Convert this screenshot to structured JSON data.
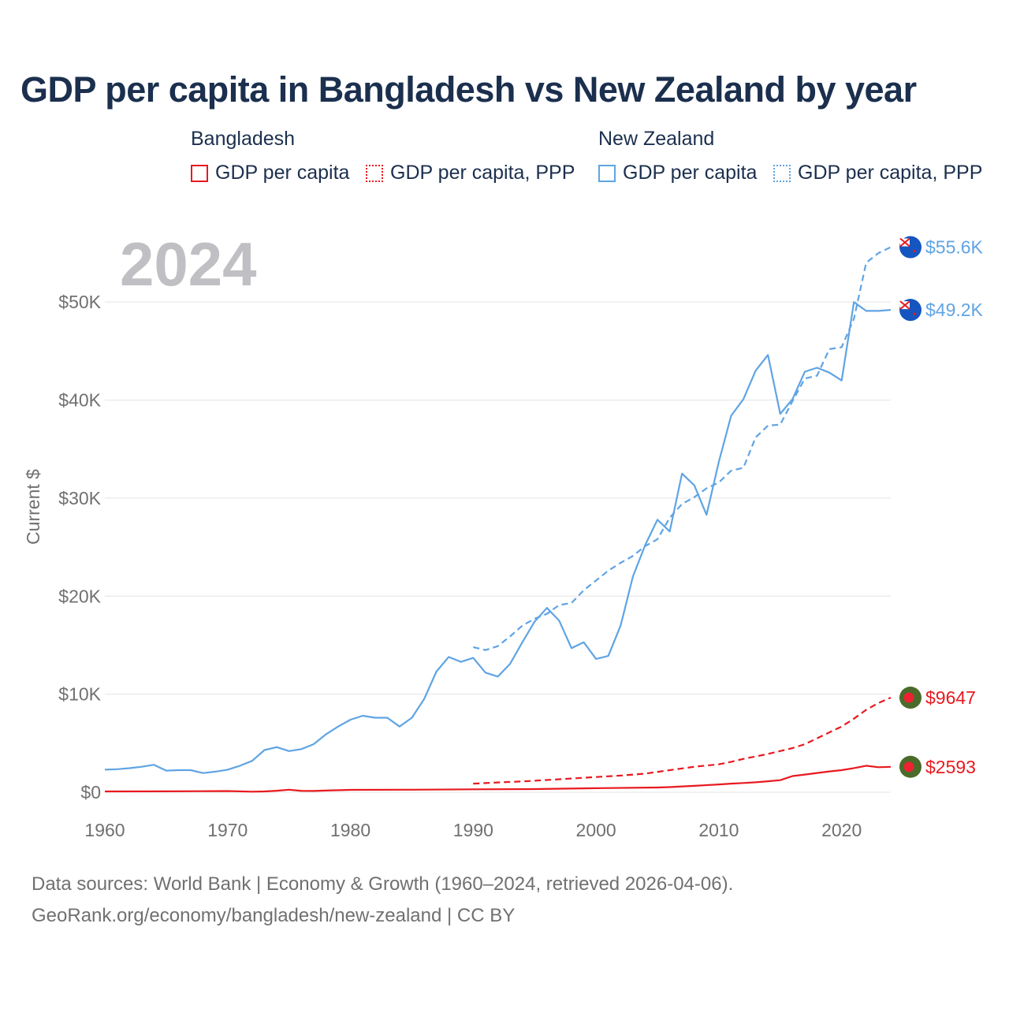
{
  "title": "GDP per capita in Bangladesh vs New Zealand by year",
  "legend": {
    "bangladesh": {
      "group": "Bangladesh",
      "gdp_label": "GDP per capita",
      "ppp_label": "GDP per capita, PPP"
    },
    "new_zealand": {
      "group": "New Zealand",
      "gdp_label": "GDP per capita",
      "ppp_label": "GDP per capita, PPP"
    }
  },
  "colors": {
    "bangladesh": "#e8191f",
    "new_zealand": "#5fa4e4",
    "grid": "#e4e4e4",
    "axis_text": "#707070"
  },
  "footer": {
    "line1": "Data sources: World Bank | Economy & Growth (1960–2024, retrieved 2026-04-06).",
    "line2": "GeoRank.org/economy/bangladesh/new-zealand | CC BY"
  },
  "chart_data": {
    "type": "line",
    "title": "GDP per capita in Bangladesh vs New Zealand by year",
    "ylabel": "Current $",
    "xlabel": "",
    "year_label": "2024",
    "xlim": [
      1960,
      2024
    ],
    "ylim": [
      0,
      55000
    ],
    "x_ticks": [
      "1960",
      "1970",
      "1980",
      "1990",
      "2000",
      "2010",
      "2020"
    ],
    "y_ticks": [
      {
        "value": 0,
        "label": "$0"
      },
      {
        "value": 10000,
        "label": "$10K"
      },
      {
        "value": 20000,
        "label": "$20K"
      },
      {
        "value": 30000,
        "label": "$30K"
      },
      {
        "value": 40000,
        "label": "$40K"
      },
      {
        "value": 50000,
        "label": "$50K"
      }
    ],
    "series": [
      {
        "name": "New Zealand GDP per capita",
        "country": "new_zealand",
        "style": "solid",
        "end_label": "$49.2K",
        "end_value": 49200,
        "x": [
          1960,
          1961,
          1962,
          1963,
          1964,
          1965,
          1966,
          1967,
          1968,
          1969,
          1970,
          1971,
          1972,
          1973,
          1974,
          1975,
          1976,
          1977,
          1978,
          1979,
          1980,
          1981,
          1982,
          1983,
          1984,
          1985,
          1986,
          1987,
          1988,
          1989,
          1990,
          1991,
          1992,
          1993,
          1994,
          1995,
          1996,
          1997,
          1998,
          1999,
          2000,
          2001,
          2002,
          2003,
          2004,
          2005,
          2006,
          2007,
          2008,
          2009,
          2010,
          2011,
          2012,
          2013,
          2014,
          2015,
          2016,
          2017,
          2018,
          2019,
          2020,
          2021,
          2022,
          2023,
          2024
        ],
        "values": [
          2300,
          2350,
          2450,
          2600,
          2800,
          2200,
          2250,
          2250,
          1950,
          2100,
          2300,
          2700,
          3200,
          4300,
          4600,
          4200,
          4400,
          4900,
          5900,
          6700,
          7400,
          7800,
          7600,
          7600,
          6700,
          7600,
          9500,
          12300,
          13800,
          13300,
          13700,
          12200,
          11800,
          13100,
          15300,
          17400,
          18800,
          17500,
          14700,
          15300,
          13600,
          13900,
          17000,
          22000,
          25200,
          27800,
          26600,
          32500,
          31300,
          28300,
          33700,
          38400,
          40100,
          43000,
          44600,
          38600,
          40100,
          42900,
          43300,
          42800,
          42000,
          50000,
          49100,
          49100,
          49200
        ]
      },
      {
        "name": "New Zealand GDP per capita, PPP",
        "country": "new_zealand",
        "style": "dashed",
        "end_label": "$55.6K",
        "end_value": 55600,
        "x": [
          1990,
          1991,
          1992,
          1993,
          1994,
          1995,
          1996,
          1997,
          1998,
          1999,
          2000,
          2001,
          2002,
          2003,
          2004,
          2005,
          2006,
          2007,
          2008,
          2009,
          2010,
          2011,
          2012,
          2013,
          2014,
          2015,
          2016,
          2017,
          2018,
          2019,
          2020,
          2021,
          2022,
          2023,
          2024
        ],
        "values": [
          14800,
          14500,
          14900,
          15900,
          17000,
          17700,
          18200,
          19100,
          19300,
          20600,
          21600,
          22600,
          23400,
          24100,
          25100,
          25800,
          28000,
          29400,
          30100,
          31000,
          31600,
          32800,
          33100,
          36200,
          37400,
          37500,
          39900,
          42200,
          42500,
          45200,
          45400,
          48300,
          54000,
          55000,
          55600
        ]
      },
      {
        "name": "Bangladesh GDP per capita",
        "country": "bangladesh",
        "style": "solid",
        "end_label": "$2593",
        "end_value": 2593,
        "x": [
          1960,
          1965,
          1970,
          1972,
          1973,
          1974,
          1975,
          1976,
          1977,
          1978,
          1980,
          1985,
          1990,
          1995,
          2000,
          2005,
          2006,
          2008,
          2010,
          2011,
          2012,
          2013,
          2014,
          2015,
          2016,
          2017,
          2018,
          2019,
          2020,
          2021,
          2022,
          2023,
          2024
        ],
        "values": [
          80,
          90,
          120,
          60,
          80,
          150,
          260,
          140,
          130,
          170,
          240,
          260,
          300,
          320,
          410,
          480,
          520,
          650,
          800,
          880,
          940,
          1010,
          1120,
          1230,
          1650,
          1800,
          1960,
          2120,
          2250,
          2460,
          2700,
          2550,
          2593
        ]
      },
      {
        "name": "Bangladesh GDP per capita, PPP",
        "country": "bangladesh",
        "style": "dashed",
        "end_label": "$9647",
        "end_value": 9647,
        "x": [
          1990,
          1992,
          1994,
          1996,
          1998,
          2000,
          2002,
          2004,
          2006,
          2008,
          2010,
          2011,
          2012,
          2014,
          2016,
          2017,
          2018,
          2019,
          2020,
          2021,
          2022,
          2023,
          2024
        ],
        "values": [
          880,
          1000,
          1100,
          1250,
          1400,
          1550,
          1700,
          1900,
          2250,
          2600,
          2850,
          3100,
          3400,
          3900,
          4500,
          4900,
          5500,
          6100,
          6700,
          7500,
          8400,
          9100,
          9647
        ]
      }
    ]
  }
}
